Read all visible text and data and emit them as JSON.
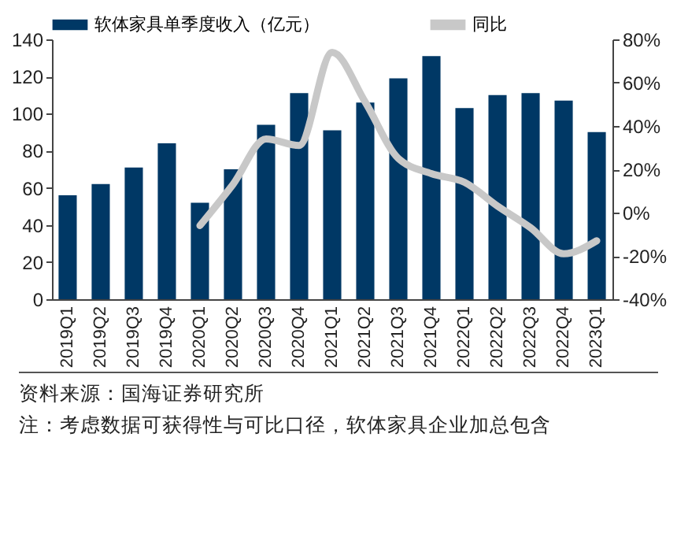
{
  "chart_data": {
    "type": "bar",
    "categories": [
      "2019Q1",
      "2019Q2",
      "2019Q3",
      "2019Q4",
      "2020Q1",
      "2020Q2",
      "2020Q3",
      "2020Q4",
      "2021Q1",
      "2021Q2",
      "2021Q3",
      "2021Q4",
      "2022Q1",
      "2022Q2",
      "2022Q3",
      "2022Q4",
      "2023Q1"
    ],
    "series": [
      {
        "name": "软体家具单季度收入（亿元）",
        "color": "#003865",
        "values": [
          56,
          62,
          71,
          84,
          52,
          70,
          94,
          111,
          91,
          106,
          119,
          131,
          103,
          110,
          111,
          107,
          90
        ]
      },
      {
        "name": "同比",
        "type": "line",
        "axis": "y2",
        "color": "#c8c8c8",
        "values": [
          null,
          null,
          null,
          null,
          -6,
          13,
          34,
          31,
          74,
          51,
          25,
          18,
          14,
          3,
          -7,
          -19,
          -13
        ]
      }
    ],
    "ylim": [
      0,
      140
    ],
    "yticks": [
      0,
      20,
      40,
      60,
      80,
      100,
      120,
      140
    ],
    "y2lim": [
      -40,
      80
    ],
    "y2ticks": [
      {
        "value": -40,
        "label": "-40%"
      },
      {
        "value": -20,
        "label": "-20%"
      },
      {
        "value": 0,
        "label": "0%"
      },
      {
        "value": 20,
        "label": "20%"
      },
      {
        "value": 40,
        "label": "40%"
      },
      {
        "value": 60,
        "label": "60%"
      },
      {
        "value": 80,
        "label": "80%"
      }
    ],
    "grid": false,
    "legend": "top",
    "annotations": [
      "资料来源：国海证券研究所",
      "注：考虑数据可获得性与可比口径，软体家具企业加总包含"
    ]
  }
}
